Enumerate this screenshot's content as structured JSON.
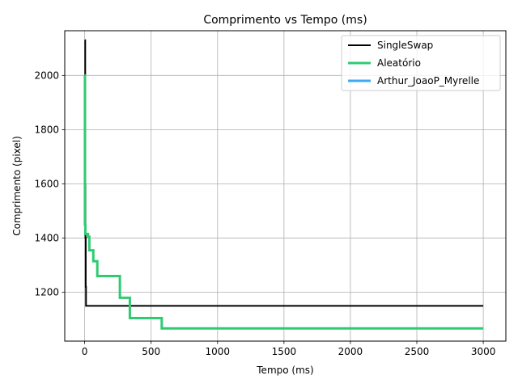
{
  "chart_data": {
    "type": "line",
    "title": "Comprimento vs Tempo (ms)",
    "xlabel": "Tempo (ms)",
    "ylabel": "Comprimento (pixel)",
    "xlim": [
      -150,
      3170
    ],
    "ylim": [
      1020,
      2165
    ],
    "x_ticks": [
      0,
      500,
      1000,
      1500,
      2000,
      2500,
      3000
    ],
    "y_ticks": [
      1200,
      1400,
      1600,
      1800,
      2000
    ],
    "grid": true,
    "legend_position": "top-right",
    "series": [
      {
        "name": "SingleSwap",
        "color": "#000000",
        "step": true,
        "points": [
          [
            0,
            2130
          ],
          [
            4,
            1600
          ],
          [
            6,
            1400
          ],
          [
            8,
            1220
          ],
          [
            10,
            1150
          ],
          [
            3000,
            1150
          ]
        ]
      },
      {
        "name": "Aleatório",
        "color": "#2ecc71",
        "step": true,
        "points": [
          [
            0,
            2000
          ],
          [
            2,
            1450
          ],
          [
            5,
            1415
          ],
          [
            25,
            1405
          ],
          [
            35,
            1355
          ],
          [
            65,
            1315
          ],
          [
            95,
            1260
          ],
          [
            265,
            1180
          ],
          [
            340,
            1105
          ],
          [
            580,
            1067
          ],
          [
            3000,
            1067
          ]
        ]
      },
      {
        "name": "Arthur_JoaoP_Myrelle",
        "color": "#3fa9f5",
        "step": true,
        "points": []
      }
    ]
  }
}
